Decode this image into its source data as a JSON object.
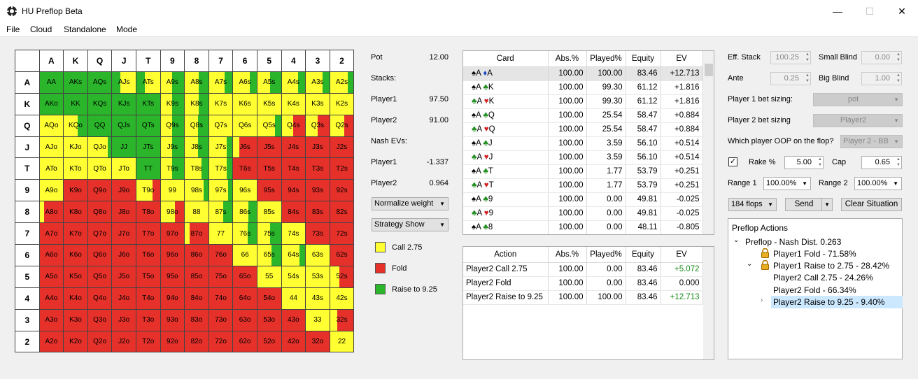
{
  "app": {
    "title": "HU Preflop Beta",
    "minimize": "—",
    "maximize": "☐",
    "close": "✕"
  },
  "menu": [
    "File",
    "Cloud",
    "Standalone",
    "Mode"
  ],
  "colors": {
    "call": "#ffff32",
    "fold": "#e6302a",
    "raise": "#2ab52a"
  },
  "grid": {
    "ranks": [
      "A",
      "K",
      "Q",
      "J",
      "T",
      "9",
      "8",
      "7",
      "6",
      "5",
      "4",
      "3",
      "2"
    ],
    "rows": [
      [
        [
          "AA",
          "r"
        ],
        [
          "AKs",
          "r"
        ],
        [
          "AQs",
          "r"
        ],
        [
          "AJs",
          "r35c"
        ],
        [
          "ATs",
          "r35c"
        ],
        [
          "A9s",
          "c50r"
        ],
        [
          "A8s",
          "c60r"
        ],
        [
          "A7s",
          "c65r"
        ],
        [
          "A6s",
          "c70r"
        ],
        [
          "A5s",
          "c55r"
        ],
        [
          "A4s",
          "c70r"
        ],
        [
          "A3s",
          "c70r"
        ],
        [
          "A2s",
          "c75r"
        ]
      ],
      [
        [
          "AKo",
          "r"
        ],
        [
          "KK",
          "r"
        ],
        [
          "KQs",
          "r"
        ],
        [
          "KJs",
          "r"
        ],
        [
          "KTs",
          "r"
        ],
        [
          "K9s",
          "c50r"
        ],
        [
          "K8s",
          "c60r"
        ],
        [
          "K7s",
          "c"
        ],
        [
          "K6s",
          "c"
        ],
        [
          "K5s",
          "c"
        ],
        [
          "K4s",
          "c"
        ],
        [
          "K3s",
          "c"
        ],
        [
          "K2s",
          "c"
        ]
      ],
      [
        [
          "AQo",
          "c"
        ],
        [
          "KQo",
          "c60r"
        ],
        [
          "QQ",
          "r"
        ],
        [
          "QJs",
          "r"
        ],
        [
          "QTs",
          "r"
        ],
        [
          "Q9s",
          "c50r"
        ],
        [
          "Q8s",
          "c55r"
        ],
        [
          "Q7s",
          "c"
        ],
        [
          "Q6s",
          "c"
        ],
        [
          "Q5s",
          "c75r"
        ],
        [
          "Q4s",
          "c50f"
        ],
        [
          "Q3s",
          "c50f"
        ],
        [
          "Q2s",
          "c60f"
        ]
      ],
      [
        [
          "AJo",
          "c"
        ],
        [
          "KJo",
          "c"
        ],
        [
          "QJo",
          "c85r"
        ],
        [
          "JJ",
          "r"
        ],
        [
          "JTs",
          "r"
        ],
        [
          "J9s",
          "c50r"
        ],
        [
          "J8s",
          "c55r"
        ],
        [
          "J7s",
          "c75r"
        ],
        [
          "J6s",
          "c25f"
        ],
        [
          "J5s",
          "f"
        ],
        [
          "J4s",
          "f"
        ],
        [
          "J3s",
          "f"
        ],
        [
          "J2s",
          "f"
        ]
      ],
      [
        [
          "ATo",
          "c"
        ],
        [
          "KTo",
          "c"
        ],
        [
          "QTo",
          "c"
        ],
        [
          "JTo",
          "c"
        ],
        [
          "TT",
          "r"
        ],
        [
          "T9s",
          "c50r"
        ],
        [
          "T8s",
          "c70r"
        ],
        [
          "T7s",
          "c75r"
        ],
        [
          "T6s",
          "f"
        ],
        [
          "T5s",
          "f"
        ],
        [
          "T4s",
          "f"
        ],
        [
          "T3s",
          "f"
        ],
        [
          "T2s",
          "f"
        ]
      ],
      [
        [
          "A9o",
          "c"
        ],
        [
          "K9o",
          "f"
        ],
        [
          "Q9o",
          "f"
        ],
        [
          "J9o",
          "f"
        ],
        [
          "T9o",
          "c70f"
        ],
        [
          "99",
          "c"
        ],
        [
          "98s",
          "c80r"
        ],
        [
          "97s",
          "c80r"
        ],
        [
          "96s",
          "c"
        ],
        [
          "95s",
          "f"
        ],
        [
          "94s",
          "f"
        ],
        [
          "93s",
          "f"
        ],
        [
          "92s",
          "f"
        ]
      ],
      [
        [
          "A8o",
          "c20f"
        ],
        [
          "K8o",
          "f"
        ],
        [
          "Q8o",
          "f"
        ],
        [
          "J8o",
          "f"
        ],
        [
          "T8o",
          "f"
        ],
        [
          "98o",
          "c60f"
        ],
        [
          "88",
          "c"
        ],
        [
          "87s",
          "c60r"
        ],
        [
          "86s",
          "c65r"
        ],
        [
          "85s",
          "c"
        ],
        [
          "84s",
          "f"
        ],
        [
          "83s",
          "f"
        ],
        [
          "82s",
          "f"
        ]
      ],
      [
        [
          "A7o",
          "f"
        ],
        [
          "K7o",
          "f"
        ],
        [
          "Q7o",
          "f"
        ],
        [
          "J7o",
          "f"
        ],
        [
          "T7o",
          "f"
        ],
        [
          "97o",
          "f"
        ],
        [
          "87o",
          "c20f"
        ],
        [
          "77",
          "c"
        ],
        [
          "76s",
          "c60r"
        ],
        [
          "75s",
          "c55r"
        ],
        [
          "74s",
          "c"
        ],
        [
          "73s",
          "f"
        ],
        [
          "72s",
          "f"
        ]
      ],
      [
        [
          "A6o",
          "f"
        ],
        [
          "K6o",
          "f"
        ],
        [
          "Q6o",
          "f"
        ],
        [
          "J6o",
          "f"
        ],
        [
          "T6o",
          "f"
        ],
        [
          "96o",
          "f"
        ],
        [
          "86o",
          "f"
        ],
        [
          "76o",
          "f"
        ],
        [
          "66",
          "c"
        ],
        [
          "65s",
          "c60r"
        ],
        [
          "64s",
          "c75r"
        ],
        [
          "63s",
          "c"
        ],
        [
          "62s",
          "f"
        ]
      ],
      [
        [
          "A5o",
          "f"
        ],
        [
          "K5o",
          "f"
        ],
        [
          "Q5o",
          "f"
        ],
        [
          "J5o",
          "f"
        ],
        [
          "T5o",
          "f"
        ],
        [
          "95o",
          "f"
        ],
        [
          "85o",
          "f"
        ],
        [
          "75o",
          "f"
        ],
        [
          "65o",
          "f"
        ],
        [
          "55",
          "c"
        ],
        [
          "54s",
          "c"
        ],
        [
          "53s",
          "c"
        ],
        [
          "52s",
          "c40f"
        ]
      ],
      [
        [
          "A4o",
          "f"
        ],
        [
          "K4o",
          "f"
        ],
        [
          "Q4o",
          "f"
        ],
        [
          "J4o",
          "f"
        ],
        [
          "T4o",
          "f"
        ],
        [
          "94o",
          "f"
        ],
        [
          "84o",
          "f"
        ],
        [
          "74o",
          "f"
        ],
        [
          "64o",
          "f"
        ],
        [
          "54o",
          "f"
        ],
        [
          "44",
          "c"
        ],
        [
          "43s",
          "c"
        ],
        [
          "42s",
          "c"
        ]
      ],
      [
        [
          "A3o",
          "f"
        ],
        [
          "K3o",
          "f"
        ],
        [
          "Q3o",
          "f"
        ],
        [
          "J3o",
          "f"
        ],
        [
          "T3o",
          "f"
        ],
        [
          "93o",
          "f"
        ],
        [
          "83o",
          "f"
        ],
        [
          "73o",
          "f"
        ],
        [
          "63o",
          "f"
        ],
        [
          "53o",
          "f"
        ],
        [
          "43o",
          "f"
        ],
        [
          "33",
          "c"
        ],
        [
          "32s",
          "c30f"
        ]
      ],
      [
        [
          "A2o",
          "f"
        ],
        [
          "K2o",
          "f"
        ],
        [
          "Q2o",
          "f"
        ],
        [
          "J2o",
          "f"
        ],
        [
          "T2o",
          "f"
        ],
        [
          "92o",
          "f"
        ],
        [
          "82o",
          "f"
        ],
        [
          "72o",
          "f"
        ],
        [
          "62o",
          "f"
        ],
        [
          "52o",
          "f"
        ],
        [
          "42o",
          "f"
        ],
        [
          "32o",
          "f"
        ],
        [
          "22",
          "c"
        ]
      ]
    ]
  },
  "info": {
    "pot_label": "Pot",
    "pot_value": "12.00",
    "stacks_label": "Stacks:",
    "player1": "Player1",
    "p1_stack": "97.50",
    "player2": "Player2",
    "p2_stack": "91.00",
    "nash_label": "Nash EVs:",
    "p1_ev": "-1.337",
    "p2_ev": "0.964"
  },
  "normalize": "Normalize weight",
  "strategy": "Strategy Show",
  "legend": [
    {
      "label": "Call 2.75",
      "color": "#ffff32"
    },
    {
      "label": "Fold",
      "color": "#e6302a"
    },
    {
      "label": "Raise to 9.25",
      "color": "#2ab52a"
    }
  ],
  "card_table": {
    "headers": [
      "Card",
      "Abs.%",
      "Played%",
      "Equity",
      "EV"
    ],
    "rows": [
      {
        "c1": "A",
        "s1": "♠",
        "k1": "#000",
        "c2": "A",
        "s2": "♦",
        "k2": "#1e50c8",
        "abs": "100.00",
        "played": "100.00",
        "eq": "83.46",
        "ev": "+12.713"
      },
      {
        "c1": "A",
        "s1": "♠",
        "k1": "#000",
        "c2": "K",
        "s2": "♣",
        "k2": "#1a8a1a",
        "abs": "100.00",
        "played": "99.30",
        "eq": "61.12",
        "ev": "+1.816"
      },
      {
        "c1": "A",
        "s1": "♣",
        "k1": "#1a8a1a",
        "c2": "K",
        "s2": "♥",
        "k2": "#d02020",
        "abs": "100.00",
        "played": "99.30",
        "eq": "61.12",
        "ev": "+1.816"
      },
      {
        "c1": "A",
        "s1": "♠",
        "k1": "#000",
        "c2": "Q",
        "s2": "♣",
        "k2": "#1a8a1a",
        "abs": "100.00",
        "played": "25.54",
        "eq": "58.47",
        "ev": "+0.884"
      },
      {
        "c1": "A",
        "s1": "♣",
        "k1": "#1a8a1a",
        "c2": "Q",
        "s2": "♥",
        "k2": "#d02020",
        "abs": "100.00",
        "played": "25.54",
        "eq": "58.47",
        "ev": "+0.884"
      },
      {
        "c1": "A",
        "s1": "♠",
        "k1": "#000",
        "c2": "J",
        "s2": "♣",
        "k2": "#1a8a1a",
        "abs": "100.00",
        "played": "3.59",
        "eq": "56.10",
        "ev": "+0.514"
      },
      {
        "c1": "A",
        "s1": "♣",
        "k1": "#1a8a1a",
        "c2": "J",
        "s2": "♥",
        "k2": "#d02020",
        "abs": "100.00",
        "played": "3.59",
        "eq": "56.10",
        "ev": "+0.514"
      },
      {
        "c1": "A",
        "s1": "♠",
        "k1": "#000",
        "c2": "T",
        "s2": "♣",
        "k2": "#1a8a1a",
        "abs": "100.00",
        "played": "1.77",
        "eq": "53.79",
        "ev": "+0.251"
      },
      {
        "c1": "A",
        "s1": "♣",
        "k1": "#1a8a1a",
        "c2": "T",
        "s2": "♥",
        "k2": "#d02020",
        "abs": "100.00",
        "played": "1.77",
        "eq": "53.79",
        "ev": "+0.251"
      },
      {
        "c1": "A",
        "s1": "♠",
        "k1": "#000",
        "c2": "9",
        "s2": "♣",
        "k2": "#1a8a1a",
        "abs": "100.00",
        "played": "0.00",
        "eq": "49.81",
        "ev": "-0.025"
      },
      {
        "c1": "A",
        "s1": "♣",
        "k1": "#1a8a1a",
        "c2": "9",
        "s2": "♥",
        "k2": "#d02020",
        "abs": "100.00",
        "played": "0.00",
        "eq": "49.81",
        "ev": "-0.025"
      },
      {
        "c1": "A",
        "s1": "♠",
        "k1": "#000",
        "c2": "8",
        "s2": "♣",
        "k2": "#1a8a1a",
        "abs": "100.00",
        "played": "0.00",
        "eq": "48.11",
        "ev": "-0.805"
      }
    ]
  },
  "action_table": {
    "headers": [
      "Action",
      "Abs.%",
      "Played%",
      "Equity",
      "EV"
    ],
    "rows": [
      {
        "action": "Player2 Call 2.75",
        "abs": "100.00",
        "played": "0.00",
        "eq": "83.46",
        "ev": "+5.072",
        "evc": "#1a8a1a"
      },
      {
        "action": "Player2 Fold",
        "abs": "100.00",
        "played": "0.00",
        "eq": "83.46",
        "ev": "0.000",
        "evc": "#000"
      },
      {
        "action": "Player2 Raise to 9.25",
        "abs": "100.00",
        "played": "100.00",
        "eq": "83.46",
        "ev": "+12.713",
        "evc": "#1a8a1a"
      }
    ]
  },
  "settings": {
    "eff_stack_label": "Eff. Stack",
    "eff_stack": "100.25",
    "small_blind_label": "Small Blind",
    "small_blind": "0.00",
    "ante_label": "Ante",
    "ante": "0.25",
    "big_blind_label": "Big Blind",
    "big_blind": "1.00",
    "p1_sizing_label": "Player 1 bet sizing:",
    "p1_sizing": "pot",
    "p2_sizing_label": "Player 2 bet sizing",
    "p2_sizing": "Player2",
    "oop_label": "Which player OOP on the flop?",
    "oop": "Player 2 - BB",
    "rake_label": "Rake %",
    "rake": "5.00",
    "cap_label": "Cap",
    "cap": "0.65",
    "range1_label": "Range 1",
    "range1": "100.00%",
    "range2_label": "Range 2",
    "range2": "100.00%",
    "flops": "184 flops",
    "send": "Send",
    "clear": "Clear Situation"
  },
  "tree": {
    "title": "Preflop Actions",
    "root": "Preflop - Nash Dist. 0.263",
    "n1": "Player1 Fold - 71.58%",
    "n2": "Player1 Raise to 2.75 - 28.42%",
    "n3": "Player2 Call 2.75 - 24.26%",
    "n4": "Player2 Fold - 66.34%",
    "n5": "Player2 Raise to 9.25 - 9.40%"
  }
}
